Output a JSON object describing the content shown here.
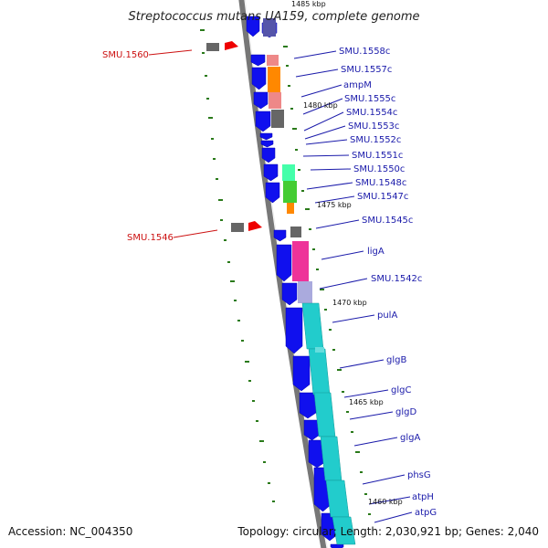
{
  "title": "Streptococcus mutans UA159, complete genome",
  "footer": {
    "accession": "Accession: NC_004350",
    "summary": "Topology: circular; Length: 2,030,921 bp; Genes: 2,040"
  },
  "colors": {
    "forward_gene": "#1010ee",
    "reverse_gene_blue": "#2020ee",
    "red_gene": "#ee0000",
    "gray_gene": "#666666",
    "backbone": "#777777",
    "tick": "#2a7a1a",
    "label_blue": "#1a1aaa",
    "label_red": "#cc1111",
    "salmon": "#ee8888",
    "orange": "#ff8800",
    "mint": "#44ffaa",
    "green": "#44cc33",
    "pink": "#ee3399",
    "lavender": "#aaaadd",
    "cyan": "#22cccc"
  },
  "kbp_labels": [
    "1485 kbp",
    "1480 kbp",
    "1475 kbp",
    "1470 kbp",
    "1465 kbp",
    "1460 kbp"
  ],
  "gene_labels_blue": [
    "SMU.1558c",
    "SMU.1557c",
    "ampM",
    "SMU.1555c",
    "SMU.1554c",
    "SMU.1553c",
    "SMU.1552c",
    "SMU.1551c",
    "SMU.1550c",
    "SMU.1548c",
    "SMU.1547c",
    "SMU.1545c",
    "ligA",
    "SMU.1542c",
    "pulA",
    "glgB",
    "glgC",
    "glgD",
    "glgA",
    "phsG",
    "atpH",
    "atpG"
  ],
  "gene_labels_red": [
    "SMU.1560",
    "SMU.1546"
  ]
}
